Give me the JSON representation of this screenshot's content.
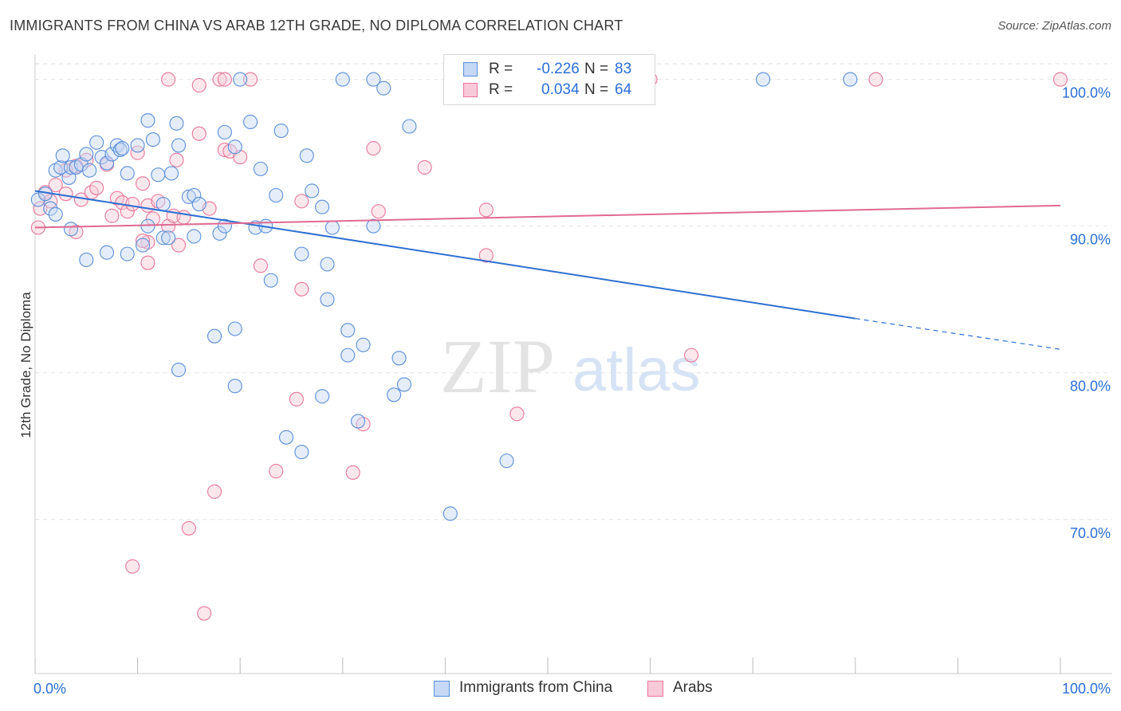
{
  "title": "IMMIGRANTS FROM CHINA VS ARAB 12TH GRADE, NO DIPLOMA CORRELATION CHART",
  "source": "Source: ZipAtlas.com",
  "watermark": {
    "zip": "ZIP",
    "atlas": "atlas"
  },
  "colors": {
    "blue": "#5b8fd9",
    "blue_fill": "#c5d8f5",
    "blue_line": "#2e6fd1",
    "pink": "#e8789a",
    "pink_fill": "#f8c9d8",
    "pink_line": "#e06a92",
    "accent_text": "#2b6fd6"
  },
  "legend": {
    "rows": [
      {
        "r_label": "R = ",
        "r_value": "-0.226",
        "n_label": "N = ",
        "n_value": "83"
      },
      {
        "r_label": "R = ",
        "r_value": "0.034",
        "n_label": "N = ",
        "n_value": "64"
      }
    ]
  },
  "bottom_legend": {
    "series1": "Immigrants from China",
    "series2": "Arabs"
  },
  "chart_data": {
    "type": "scatter",
    "title": "IMMIGRANTS FROM CHINA VS ARAB 12TH GRADE, NO DIPLOMA CORRELATION CHART",
    "xlabel": "",
    "ylabel": "12th Grade, No Diploma",
    "xlim": [
      0,
      100
    ],
    "ylim": [
      59.5,
      101.5
    ],
    "x_tick_labels": [
      "0.0%",
      "100.0%"
    ],
    "y_ticks": [
      70,
      80,
      90,
      100
    ],
    "y_tick_labels": [
      "70.0%",
      "80.0%",
      "90.0%",
      "100.0%"
    ],
    "grid": true,
    "legend_position": "top-center",
    "series": [
      {
        "name": "Immigrants from China",
        "color": "#5b8fd9",
        "R": -0.226,
        "N": 83,
        "trend": {
          "x0": 0,
          "y0": 92.4,
          "x1": 80,
          "y1": 83.7,
          "dash_x1": 100,
          "dash_y1": 81.6
        },
        "points": [
          [
            0.3,
            91.8
          ],
          [
            1,
            92.2
          ],
          [
            1.5,
            91.2
          ],
          [
            2,
            93.8
          ],
          [
            2.5,
            94.0
          ],
          [
            2.7,
            94.8
          ],
          [
            3.3,
            93.3
          ],
          [
            3.5,
            94.0
          ],
          [
            4,
            94.0
          ],
          [
            4.5,
            94.2
          ],
          [
            5,
            94.9
          ],
          [
            5.3,
            93.8
          ],
          [
            6,
            95.7
          ],
          [
            6.5,
            94.7
          ],
          [
            7,
            94.3
          ],
          [
            7.5,
            94.9
          ],
          [
            8,
            95.5
          ],
          [
            8.3,
            95.2
          ],
          [
            8.5,
            95.3
          ],
          [
            9,
            93.6
          ],
          [
            10,
            95.5
          ],
          [
            11,
            97.2
          ],
          [
            11.5,
            95.9
          ],
          [
            12,
            93.5
          ],
          [
            12.5,
            91.5
          ],
          [
            13.3,
            93.6
          ],
          [
            14,
            95.5
          ],
          [
            13.8,
            97.0
          ],
          [
            15,
            92.0
          ],
          [
            15.5,
            92.1
          ],
          [
            16,
            91.5
          ],
          [
            18.5,
            96.4
          ],
          [
            19.5,
            95.4
          ],
          [
            20,
            100
          ],
          [
            21,
            97.1
          ],
          [
            21.5,
            89.9
          ],
          [
            22,
            93.9
          ],
          [
            23.5,
            92.1
          ],
          [
            24,
            96.5
          ],
          [
            26.5,
            94.8
          ],
          [
            27,
            92.4
          ],
          [
            28,
            91.3
          ],
          [
            30,
            100
          ],
          [
            33,
            100
          ],
          [
            34,
            99.4
          ],
          [
            36.5,
            96.8
          ],
          [
            5,
            87.7
          ],
          [
            7,
            88.2
          ],
          [
            9,
            88.1
          ],
          [
            10.5,
            88.7
          ],
          [
            11,
            90.0
          ],
          [
            12.5,
            89.2
          ],
          [
            13,
            89.2
          ],
          [
            15.5,
            89.3
          ],
          [
            18,
            89.5
          ],
          [
            18.5,
            90.0
          ],
          [
            22.5,
            90.0
          ],
          [
            23,
            86.3
          ],
          [
            26,
            88.1
          ],
          [
            28.5,
            87.4
          ],
          [
            28.5,
            85.0
          ],
          [
            29,
            89.9
          ],
          [
            33,
            90.0
          ],
          [
            17.5,
            82.5
          ],
          [
            19.5,
            83.0
          ],
          [
            14,
            80.2
          ],
          [
            19.5,
            79.1
          ],
          [
            30.5,
            82.9
          ],
          [
            30.5,
            81.2
          ],
          [
            32,
            81.9
          ],
          [
            35.5,
            81.0
          ],
          [
            36,
            79.2
          ],
          [
            35,
            78.5
          ],
          [
            28,
            78.4
          ],
          [
            31.5,
            76.7
          ],
          [
            24.5,
            75.6
          ],
          [
            26,
            74.6
          ],
          [
            46,
            74.0
          ],
          [
            40.5,
            70.4
          ],
          [
            71,
            100
          ],
          [
            79.5,
            100
          ],
          [
            2,
            90.8
          ],
          [
            3.5,
            89.8
          ]
        ]
      },
      {
        "name": "Arabs",
        "color": "#e8789a",
        "R": 0.034,
        "N": 64,
        "trend": {
          "x0": 0,
          "y0": 89.9,
          "x1": 100,
          "y1": 91.4
        },
        "points": [
          [
            0.3,
            89.9
          ],
          [
            0.5,
            91.2
          ],
          [
            1,
            92.3
          ],
          [
            1.5,
            91.7
          ],
          [
            2,
            92.8
          ],
          [
            3,
            92.2
          ],
          [
            4,
            94.1
          ],
          [
            4.5,
            91.8
          ],
          [
            5,
            94.5
          ],
          [
            5.5,
            92.3
          ],
          [
            6,
            92.6
          ],
          [
            7,
            94.2
          ],
          [
            8,
            91.9
          ],
          [
            8.5,
            91.6
          ],
          [
            9,
            91.0
          ],
          [
            9.5,
            91.5
          ],
          [
            10,
            95.0
          ],
          [
            10.5,
            92.9
          ],
          [
            11,
            91.4
          ],
          [
            11.5,
            90.5
          ],
          [
            12,
            91.7
          ],
          [
            13,
            90.0
          ],
          [
            13.5,
            90.7
          ],
          [
            13.8,
            94.5
          ],
          [
            14.5,
            90.6
          ],
          [
            16,
            96.3
          ],
          [
            17,
            91.2
          ],
          [
            18.5,
            95.2
          ],
          [
            19,
            95.1
          ],
          [
            20,
            94.7
          ],
          [
            22,
            87.3
          ],
          [
            26,
            91.7
          ],
          [
            26,
            85.7
          ],
          [
            33,
            95.3
          ],
          [
            33.5,
            91.0
          ],
          [
            38,
            94.0
          ],
          [
            44,
            91.1
          ],
          [
            44,
            88.0
          ],
          [
            25.5,
            78.2
          ],
          [
            32,
            76.5
          ],
          [
            47,
            77.2
          ],
          [
            31,
            73.2
          ],
          [
            23.5,
            73.3
          ],
          [
            17.5,
            71.9
          ],
          [
            15,
            69.4
          ],
          [
            9.5,
            66.8
          ],
          [
            16.5,
            63.6
          ],
          [
            13,
            100
          ],
          [
            16,
            99.6
          ],
          [
            18,
            100
          ],
          [
            18.5,
            100
          ],
          [
            21,
            100
          ],
          [
            47,
            100
          ],
          [
            60,
            100
          ],
          [
            82,
            100
          ],
          [
            100,
            100
          ],
          [
            64,
            81.2
          ],
          [
            11,
            87.5
          ],
          [
            11,
            88.9
          ],
          [
            14,
            88.7
          ],
          [
            3,
            93.8
          ],
          [
            4,
            89.6
          ],
          [
            7.5,
            90.7
          ],
          [
            10.5,
            89.0
          ]
        ]
      }
    ]
  }
}
